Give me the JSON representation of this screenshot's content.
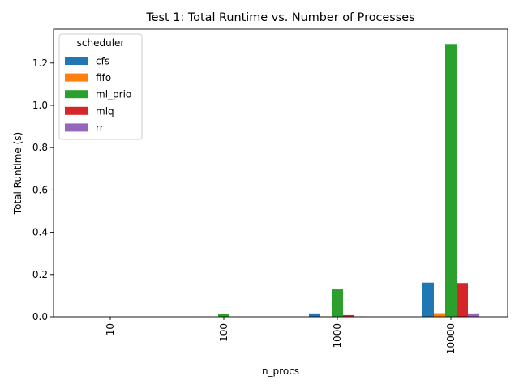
{
  "chart_data": {
    "type": "bar",
    "title": "Test 1: Total Runtime vs. Number of Processes",
    "xlabel": "n_procs",
    "ylabel": "Total Runtime (s)",
    "categories": [
      "10",
      "100",
      "1000",
      "10000"
    ],
    "ylim": [
      0,
      1.36
    ],
    "yticks": [
      "0.0",
      "0.2",
      "0.4",
      "0.6",
      "0.8",
      "1.0",
      "1.2"
    ],
    "ytick_values": [
      0,
      0.2,
      0.4,
      0.6,
      0.8,
      1.0,
      1.2
    ],
    "grid": false,
    "legend": {
      "title": "scheduler",
      "placement": "top-left"
    },
    "series": [
      {
        "name": "cfs",
        "color": "#1f77b4",
        "values": [
          0.0001,
          0.0004,
          0.016,
          0.162
        ]
      },
      {
        "name": "fifo",
        "color": "#ff7f0e",
        "values": [
          0.0001,
          0.0002,
          0.002,
          0.017
        ]
      },
      {
        "name": "ml_prio",
        "color": "#2ca02c",
        "values": [
          0.0004,
          0.012,
          0.13,
          1.29
        ]
      },
      {
        "name": "mlq",
        "color": "#d62728",
        "values": [
          0.0001,
          0.0006,
          0.008,
          0.16
        ]
      },
      {
        "name": "rr",
        "color": "#9467bd",
        "values": [
          0.0001,
          0.0002,
          0.002,
          0.016
        ]
      }
    ]
  }
}
